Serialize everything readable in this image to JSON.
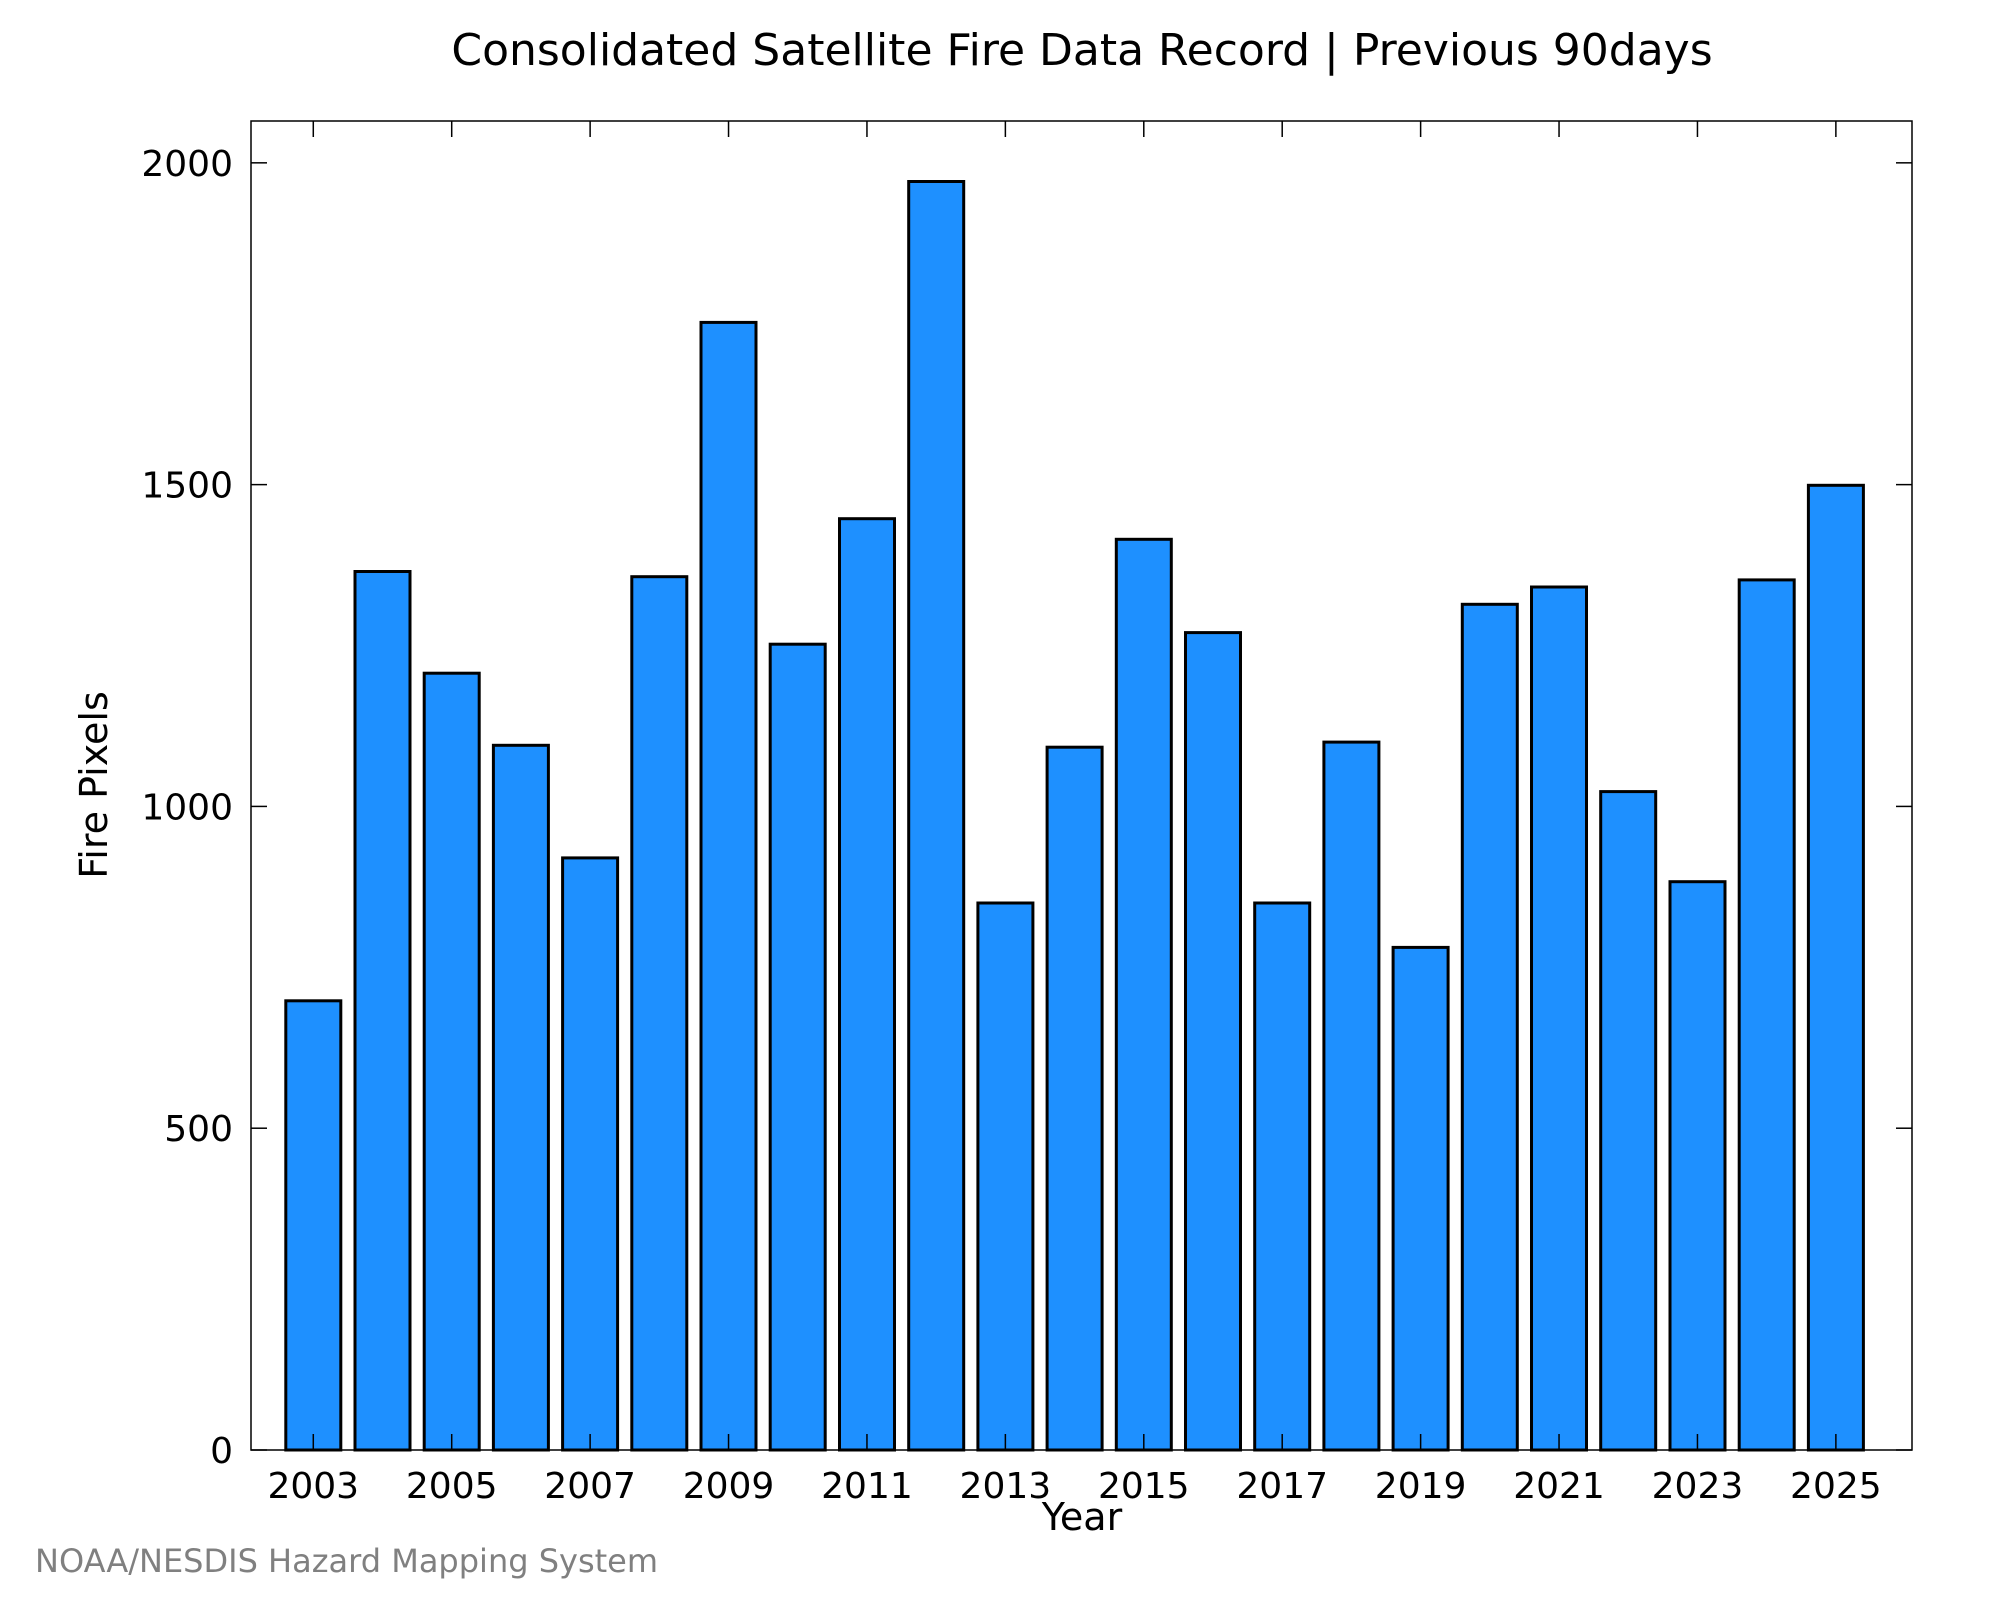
{
  "chart_data": {
    "type": "bar",
    "title": "Consolidated Satellite Fire Data Record | Previous 90days",
    "xlabel": "Year",
    "ylabel": "Fire Pixels",
    "x_tick_labels": [
      "2003",
      "2005",
      "2007",
      "2009",
      "2011",
      "2013",
      "2015",
      "2017",
      "2019",
      "2021",
      "2023",
      "2025"
    ],
    "y_tick_labels": [
      "0",
      "500",
      "1000",
      "1500",
      "2000"
    ],
    "y_ticks": [
      0,
      500,
      1000,
      1500,
      2000
    ],
    "ylim": [
      0,
      2065
    ],
    "xlim": [
      2002.1,
      2026.1
    ],
    "grid": false,
    "bar_color": "#1e90ff",
    "edge_color": "#000000",
    "x": [
      2003,
      2004,
      2005,
      2006,
      2007,
      2008,
      2009,
      2010,
      2011,
      2012,
      2013,
      2014,
      2015,
      2016,
      2017,
      2018,
      2019,
      2020,
      2021,
      2022,
      2023,
      2024,
      2025
    ],
    "values": [
      698,
      1365,
      1207,
      1095,
      920,
      1357,
      1752,
      1252,
      1447,
      1971,
      850,
      1092,
      1415,
      1270,
      850,
      1100,
      781,
      1314,
      1341,
      1023,
      883,
      1352,
      1499
    ]
  },
  "credit": "NOAA/NESDIS Hazard Mapping System"
}
